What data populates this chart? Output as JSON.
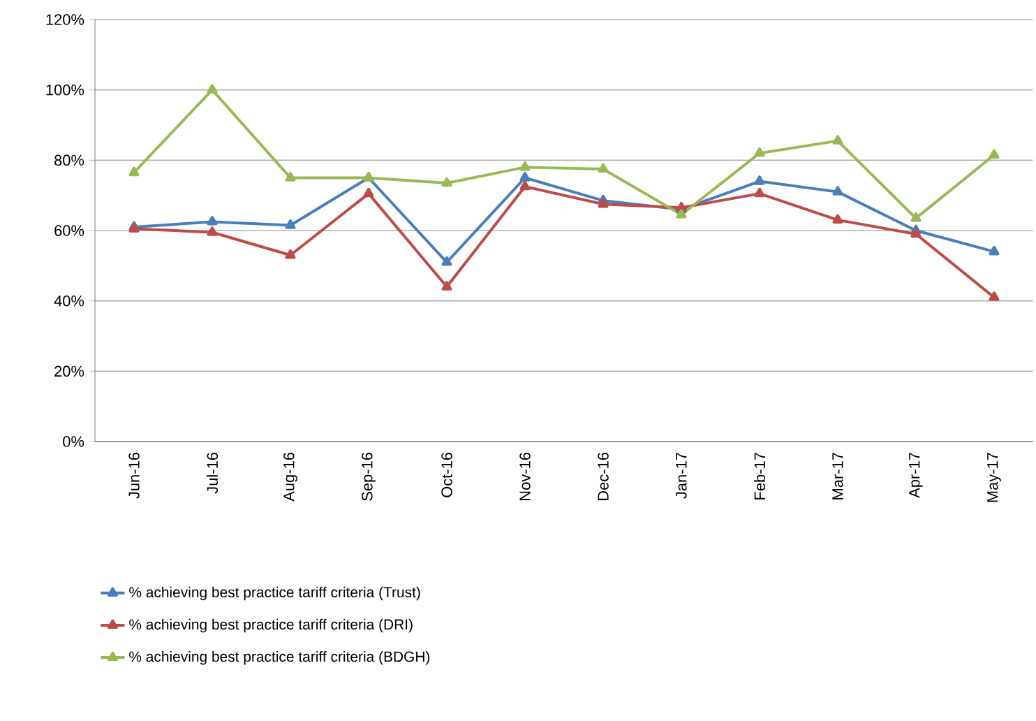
{
  "chart_data": {
    "type": "line",
    "categories": [
      "Jun-16",
      "Jul-16",
      "Aug-16",
      "Sep-16",
      "Oct-16",
      "Nov-16",
      "Dec-16",
      "Jan-17",
      "Feb-17",
      "Mar-17",
      "Apr-17",
      "May-17"
    ],
    "series": [
      {
        "name": "% achieving best practice tariff criteria (Trust)",
        "color": "#4a7ebb",
        "values": [
          61,
          62.5,
          61.5,
          75,
          51,
          75,
          68.5,
          66,
          74,
          71,
          60,
          54
        ]
      },
      {
        "name": "% achieving best practice tariff criteria (DRI)",
        "color": "#be4b48",
        "values": [
          60.5,
          59.5,
          53,
          70.5,
          44,
          72.5,
          67.5,
          66.5,
          70.5,
          63,
          59,
          41
        ]
      },
      {
        "name": "% achieving best practice tariff criteria (BDGH)",
        "color": "#98b954",
        "values": [
          76.5,
          100,
          75,
          75,
          73.5,
          78,
          77.5,
          64.5,
          82,
          85.5,
          63.5,
          81.5
        ]
      }
    ],
    "ylim": [
      0,
      120
    ],
    "yticks": [
      {
        "value": 0,
        "label": "0%"
      },
      {
        "value": 20,
        "label": "20%"
      },
      {
        "value": 40,
        "label": "40%"
      },
      {
        "value": 60,
        "label": "60%"
      },
      {
        "value": 80,
        "label": "80%"
      },
      {
        "value": 100,
        "label": "100%"
      },
      {
        "value": 120,
        "label": "120%"
      }
    ],
    "grid": "y",
    "legend": "bottom",
    "marker": "triangle",
    "line_style": "solid"
  }
}
